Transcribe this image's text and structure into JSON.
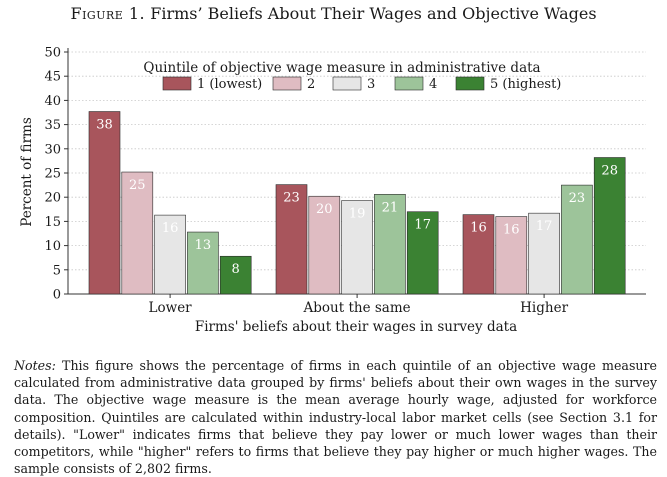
{
  "figure": {
    "label": "Figure 1.",
    "title": "Firms’ Beliefs About Their Wages and Objective Wages"
  },
  "chart_data": {
    "type": "bar",
    "title": "Firms’ Beliefs About Their Wages and Objective Wages",
    "categories": [
      "Lower",
      "About the same",
      "Higher"
    ],
    "xlabel": "Firms' beliefs about their wages in survey data",
    "ylabel": "Percent of firms",
    "ylim": [
      0,
      50
    ],
    "yticks": [
      0,
      5,
      10,
      15,
      20,
      25,
      30,
      35,
      40,
      45,
      50
    ],
    "grid": true,
    "legend": {
      "title": "Quintile of objective wage measure in administrative data",
      "placement": "top-center"
    },
    "series": [
      {
        "name": "1 (lowest)",
        "color": "#a8555c",
        "label_color": "#ffffff",
        "values": [
          37.7,
          22.6,
          16.4
        ],
        "labels": [
          "38",
          "23",
          "16"
        ]
      },
      {
        "name": "2",
        "color": "#dfbcc2",
        "label_color": "#ffffff",
        "values": [
          25.2,
          20.2,
          16.0
        ],
        "labels": [
          "25",
          "20",
          "16"
        ]
      },
      {
        "name": "3",
        "color": "#e6e6e6",
        "label_color": "#ffffff",
        "values": [
          16.3,
          19.3,
          16.7
        ],
        "labels": [
          "16",
          "19",
          "17"
        ]
      },
      {
        "name": "4",
        "color": "#9dc49a",
        "label_color": "#ffffff",
        "values": [
          12.8,
          20.6,
          22.5
        ],
        "labels": [
          "13",
          "21",
          "23"
        ]
      },
      {
        "name": "5 (highest)",
        "color": "#3b8233",
        "label_color": "#ffffff",
        "values": [
          7.8,
          17.0,
          28.2
        ],
        "labels": [
          "8",
          "17",
          "28"
        ]
      }
    ]
  },
  "notes": {
    "label": "Notes:",
    "text": " This figure shows the percentage of firms in each quintile of an objective wage measure calculated from administrative data grouped by firms' beliefs about their own wages in the survey data. The objective wage measure is the mean average hourly wage, adjusted for workforce composition. Quintiles are calculated within industry-local labor market cells (see Section 3.1 for details). \"Lower\" indicates firms that believe they pay lower or much lower wages than their competitors, while \"higher\" refers to firms that believe they pay higher or much higher wages. The sample consists of 2,802 firms."
  }
}
